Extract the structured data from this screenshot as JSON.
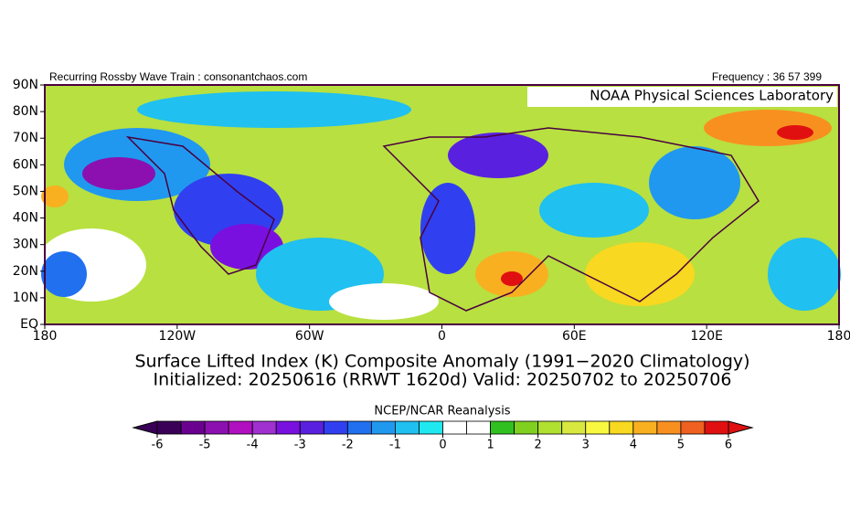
{
  "header": {
    "left": "Recurring Rossby Wave Train : consonantchaos.com",
    "right": "Frequency : 36 57 399"
  },
  "map": {
    "credit": "NOAA Physical Sciences Laboratory",
    "lat_labels": [
      "90N",
      "80N",
      "70N",
      "60N",
      "50N",
      "40N",
      "30N",
      "20N",
      "10N",
      "EQ"
    ],
    "lon_labels": [
      "180",
      "120W",
      "60W",
      "0",
      "60E",
      "120E",
      "180"
    ]
  },
  "title": {
    "line1": "Surface Lifted Index (K) Composite Anomaly (1991−2020 Climatology)",
    "line2": "Initialized: 20250616 (RRWT 1620d) Valid: 20250702 to 20250706"
  },
  "colorbar": {
    "label": "NCEP/NCAR Reanalysis",
    "lim": [
      -6,
      6
    ],
    "ticks": [
      -6,
      -5,
      -4,
      -3,
      -2,
      -1,
      0,
      1,
      2,
      3,
      4,
      5,
      6
    ],
    "colors": [
      "#3a0058",
      "#6a0090",
      "#8c10b0",
      "#b010c0",
      "#a030d0",
      "#7a10e0",
      "#5a20e0",
      "#3040f0",
      "#2070f0",
      "#2098f0",
      "#20c0f0",
      "#20e8f0",
      "#ffffff",
      "#ffffff",
      "#30c020",
      "#80d020",
      "#b0e030",
      "#d8e840",
      "#f8f840",
      "#f8d820",
      "#f8b020",
      "#f89020",
      "#f06020",
      "#e01010"
    ]
  }
}
